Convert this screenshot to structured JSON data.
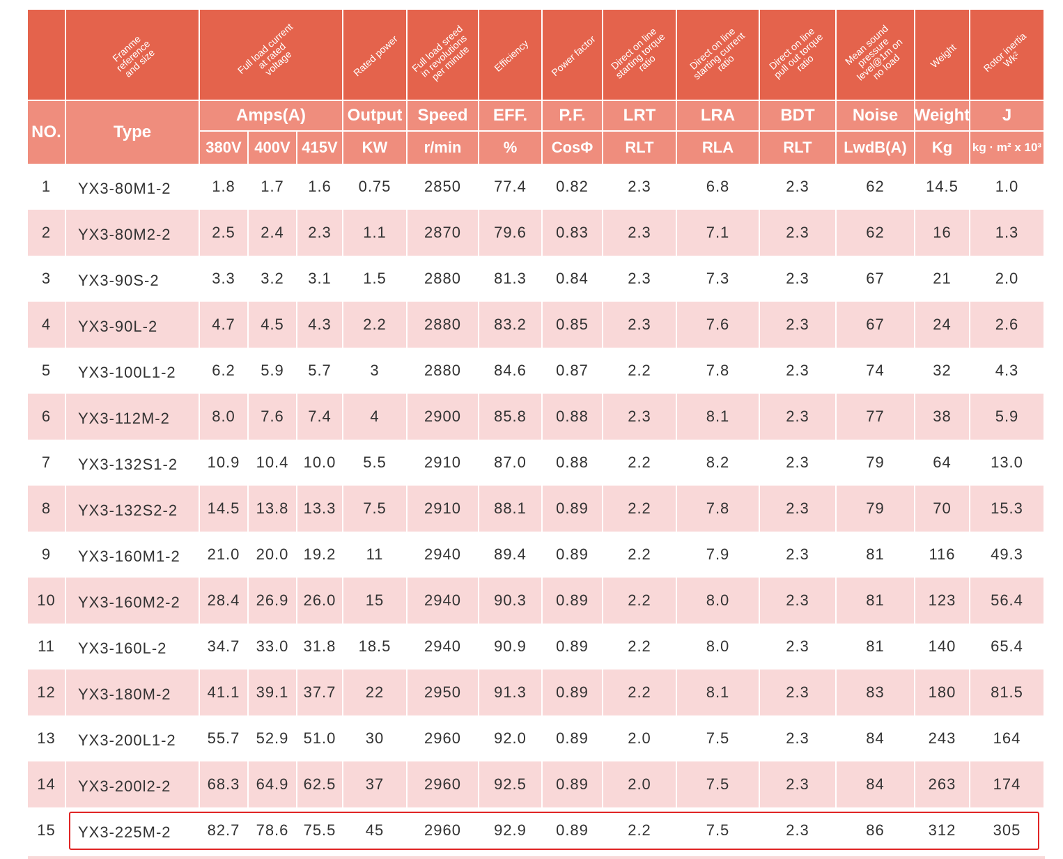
{
  "header": {
    "rotated": [
      [
        "Franme",
        "reference",
        "and size"
      ],
      [
        "Full load current",
        "at rated",
        "voltage"
      ],
      [
        "Rated power"
      ],
      [
        "Full load sreed",
        "in revolutions",
        "per minute"
      ],
      [
        "Efficiency"
      ],
      [
        "Power factor"
      ],
      [
        "Direct on line",
        "starting torque",
        "ratio"
      ],
      [
        "Direct on line",
        "starting current",
        "ratio"
      ],
      [
        "Direct on line",
        "pull out torque",
        "ratio"
      ],
      [
        "Mean sound",
        "pressure",
        "level@1m on",
        "no load"
      ],
      [
        "Weight"
      ],
      [
        "Rotor inertia",
        "Wk²"
      ]
    ],
    "no": "NO.",
    "type": "Type",
    "groups": [
      "Amps(A)",
      "Output",
      "Speed",
      "EFF.",
      "P.F.",
      "LRT",
      "LRA",
      "BDT",
      "Noise",
      "Weight",
      "J"
    ],
    "units": [
      "380V",
      "400V",
      "415V",
      "KW",
      "r/min",
      "%",
      "CosΦ",
      "RLT",
      "RLA",
      "RLT",
      "LwdB(A)",
      "Kg",
      "kg · m² x 10³"
    ]
  },
  "table": {
    "rows": [
      [
        "1",
        "YX3-80M1-2",
        "1.8",
        "1.7",
        "1.6",
        "0.75",
        "2850",
        "77.4",
        "0.82",
        "2.3",
        "6.8",
        "2.3",
        "62",
        "14.5",
        "1.0"
      ],
      [
        "2",
        "YX3-80M2-2",
        "2.5",
        "2.4",
        "2.3",
        "1.1",
        "2870",
        "79.6",
        "0.83",
        "2.3",
        "7.1",
        "2.3",
        "62",
        "16",
        "1.3"
      ],
      [
        "3",
        "YX3-90S-2",
        "3.3",
        "3.2",
        "3.1",
        "1.5",
        "2880",
        "81.3",
        "0.84",
        "2.3",
        "7.3",
        "2.3",
        "67",
        "21",
        "2.0"
      ],
      [
        "4",
        "YX3-90L-2",
        "4.7",
        "4.5",
        "4.3",
        "2.2",
        "2880",
        "83.2",
        "0.85",
        "2.3",
        "7.6",
        "2.3",
        "67",
        "24",
        "2.6"
      ],
      [
        "5",
        "YX3-100L1-2",
        "6.2",
        "5.9",
        "5.7",
        "3",
        "2880",
        "84.6",
        "0.87",
        "2.2",
        "7.8",
        "2.3",
        "74",
        "32",
        "4.3"
      ],
      [
        "6",
        "YX3-112M-2",
        "8.0",
        "7.6",
        "7.4",
        "4",
        "2900",
        "85.8",
        "0.88",
        "2.3",
        "8.1",
        "2.3",
        "77",
        "38",
        "5.9"
      ],
      [
        "7",
        "YX3-132S1-2",
        "10.9",
        "10.4",
        "10.0",
        "5.5",
        "2910",
        "87.0",
        "0.88",
        "2.2",
        "8.2",
        "2.3",
        "79",
        "64",
        "13.0"
      ],
      [
        "8",
        "YX3-132S2-2",
        "14.5",
        "13.8",
        "13.3",
        "7.5",
        "2910",
        "88.1",
        "0.89",
        "2.2",
        "7.8",
        "2.3",
        "79",
        "70",
        "15.3"
      ],
      [
        "9",
        "YX3-160M1-2",
        "21.0",
        "20.0",
        "19.2",
        "11",
        "2940",
        "89.4",
        "0.89",
        "2.2",
        "7.9",
        "2.3",
        "81",
        "116",
        "49.3"
      ],
      [
        "10",
        "YX3-160M2-2",
        "28.4",
        "26.9",
        "26.0",
        "15",
        "2940",
        "90.3",
        "0.89",
        "2.2",
        "8.0",
        "2.3",
        "81",
        "123",
        "56.4"
      ],
      [
        "11",
        "YX3-160L-2",
        "34.7",
        "33.0",
        "31.8",
        "18.5",
        "2940",
        "90.9",
        "0.89",
        "2.2",
        "8.0",
        "2.3",
        "81",
        "140",
        "65.4"
      ],
      [
        "12",
        "YX3-180M-2",
        "41.1",
        "39.1",
        "37.7",
        "22",
        "2950",
        "91.3",
        "0.89",
        "2.2",
        "8.1",
        "2.3",
        "83",
        "180",
        "81.5"
      ],
      [
        "13",
        "YX3-200L1-2",
        "55.7",
        "52.9",
        "51.0",
        "30",
        "2960",
        "92.0",
        "0.89",
        "2.0",
        "7.5",
        "2.3",
        "84",
        "243",
        "164"
      ],
      [
        "14",
        "YX3-200l2-2",
        "68.3",
        "64.9",
        "62.5",
        "37",
        "2960",
        "92.5",
        "0.89",
        "2.0",
        "7.5",
        "2.3",
        "84",
        "263",
        "174"
      ],
      [
        "15",
        "YX3-225M-2",
        "82.7",
        "78.6",
        "75.5",
        "45",
        "2960",
        "92.9",
        "0.89",
        "2.2",
        "7.5",
        "2.3",
        "86",
        "312",
        "305"
      ]
    ]
  }
}
